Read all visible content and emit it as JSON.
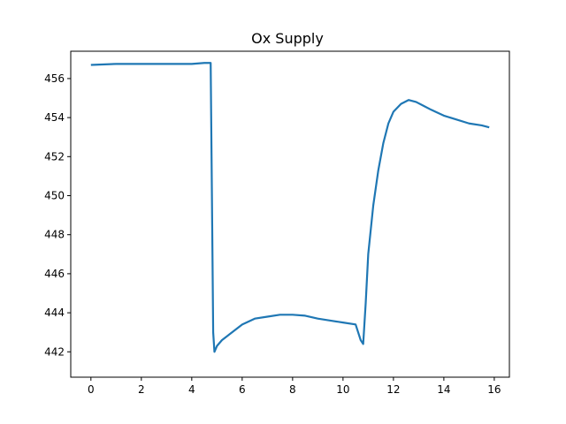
{
  "chart_data": {
    "type": "line",
    "title": "Ox Supply",
    "xlabel": "",
    "ylabel": "",
    "xlim": [
      -0.8,
      16.6
    ],
    "ylim": [
      440.7,
      457.4
    ],
    "xticks": [
      0,
      2,
      4,
      6,
      8,
      10,
      12,
      14,
      16
    ],
    "yticks": [
      442,
      444,
      446,
      448,
      450,
      452,
      454,
      456
    ],
    "grid": false,
    "series_color": "#1f77b4",
    "series": [
      {
        "x": [
          0.0,
          1.0,
          2.0,
          3.0,
          4.0,
          4.5,
          4.75,
          4.8,
          4.85,
          4.9,
          5.0,
          5.2,
          5.5,
          6.0,
          6.5,
          7.0,
          7.5,
          8.0,
          8.5,
          9.0,
          9.5,
          10.0,
          10.5,
          10.7,
          10.8,
          10.9,
          11.0,
          11.2,
          11.4,
          11.6,
          11.8,
          12.0,
          12.3,
          12.6,
          12.9,
          13.2,
          13.5,
          14.0,
          14.5,
          15.0,
          15.5,
          15.8
        ],
        "y": [
          456.7,
          456.75,
          456.75,
          456.75,
          456.75,
          456.8,
          456.8,
          450.0,
          443.0,
          442.0,
          442.3,
          442.6,
          442.9,
          443.4,
          443.7,
          443.8,
          443.9,
          443.9,
          443.85,
          443.7,
          443.6,
          443.5,
          443.4,
          442.6,
          442.4,
          444.5,
          447.0,
          449.5,
          451.3,
          452.7,
          453.7,
          454.3,
          454.7,
          454.9,
          454.8,
          454.6,
          454.4,
          454.1,
          453.9,
          453.7,
          453.6,
          453.5
        ]
      }
    ]
  }
}
